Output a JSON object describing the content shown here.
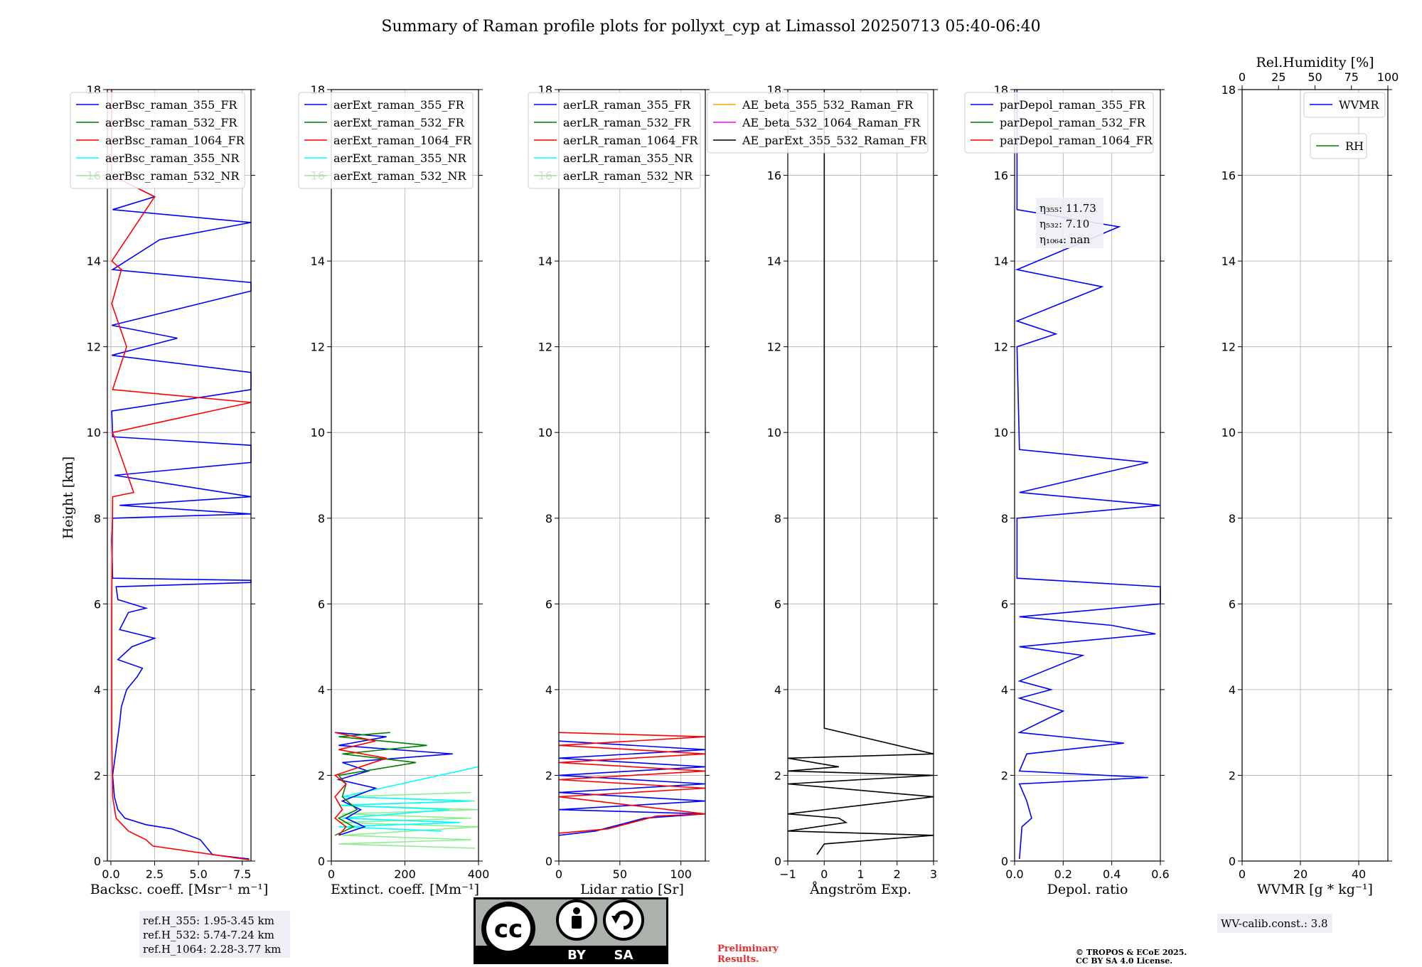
{
  "title": "Summary of Raman profile plots for pollyxt_cyp at Limassol 20250713 05:40-06:40",
  "y_axis_label": "Height [km]",
  "y_ticks": [
    "0",
    "2",
    "4",
    "6",
    "8",
    "10",
    "12",
    "14",
    "16",
    "18"
  ],
  "colors": {
    "c355": "#0000ff",
    "c532": "#008000",
    "c1064": "#ff0000",
    "c355nr": "#00ffff",
    "c532nr": "#90ee90",
    "orange": "#ffa500",
    "magenta": "#ff00ff",
    "black": "#000000"
  },
  "chart_data": [
    {
      "type": "line",
      "xlabel": "Backsc. coeff. [Msr⁻¹ m⁻¹]",
      "xlim": [
        -0.2,
        8
      ],
      "ylim": [
        0,
        18
      ],
      "x_ticks": [
        0,
        2.5,
        5,
        7.5
      ],
      "x_tick_labels": [
        "0.0",
        "2.5",
        "5.0",
        "7.5"
      ],
      "legend": [
        "aerBsc_raman_355_FR",
        "aerBsc_raman_532_FR",
        "aerBsc_raman_1064_FR",
        "aerBsc_raman_355_NR",
        "aerBsc_raman_532_NR"
      ],
      "legend_colors": [
        "c355",
        "c532",
        "c1064",
        "c355nr",
        "c532nr"
      ],
      "series": [
        {
          "name": "aerBsc_raman_355_FR",
          "color": "c355",
          "points": [
            [
              7.9,
              0.05
            ],
            [
              5.8,
              0.15
            ],
            [
              5.5,
              0.3
            ],
            [
              5.1,
              0.5
            ],
            [
              3.5,
              0.75
            ],
            [
              2.0,
              0.85
            ],
            [
              0.8,
              1.0
            ],
            [
              0.4,
              1.2
            ],
            [
              0.2,
              1.5
            ],
            [
              0.1,
              2.0
            ],
            [
              0.3,
              2.6
            ],
            [
              0.5,
              3.2
            ],
            [
              0.6,
              3.6
            ],
            [
              0.9,
              4.0
            ],
            [
              1.5,
              4.3
            ],
            [
              1.8,
              4.5
            ],
            [
              0.4,
              4.7
            ],
            [
              1.2,
              5.0
            ],
            [
              2.5,
              5.2
            ],
            [
              0.5,
              5.4
            ],
            [
              1.0,
              5.8
            ],
            [
              2.0,
              5.9
            ],
            [
              0.4,
              6.1
            ],
            [
              0.3,
              6.4
            ],
            [
              8.0,
              6.5
            ],
            [
              8.0,
              6.55
            ],
            [
              0.1,
              6.6
            ],
            [
              0.05,
              7.5
            ],
            [
              0.1,
              8.0
            ],
            [
              8.0,
              8.1
            ],
            [
              0.5,
              8.3
            ],
            [
              8.0,
              8.5
            ],
            [
              0.2,
              9.0
            ],
            [
              8.0,
              9.3
            ],
            [
              8.0,
              9.5
            ],
            [
              8.0,
              9.7
            ],
            [
              0.1,
              9.9
            ],
            [
              0.05,
              10.5
            ],
            [
              8.0,
              11.0
            ],
            [
              8.0,
              11.4
            ],
            [
              0.05,
              11.8
            ],
            [
              3.8,
              12.2
            ],
            [
              0.05,
              12.5
            ],
            [
              8.0,
              13.3
            ],
            [
              8.0,
              13.5
            ],
            [
              0.1,
              13.8
            ],
            [
              2.8,
              14.5
            ],
            [
              8.0,
              14.9
            ],
            [
              0.1,
              15.2
            ],
            [
              2.5,
              15.5
            ],
            [
              0.05,
              16.0
            ],
            [
              0.05,
              18.0
            ]
          ]
        },
        {
          "name": "aerBsc_raman_1064_FR",
          "color": "c1064",
          "points": [
            [
              7.9,
              0.03
            ],
            [
              2.4,
              0.35
            ],
            [
              2.0,
              0.5
            ],
            [
              1.0,
              0.7
            ],
            [
              0.3,
              1.0
            ],
            [
              0.1,
              1.5
            ],
            [
              0.05,
              3.0
            ],
            [
              0.05,
              6.0
            ],
            [
              0.1,
              8.5
            ],
            [
              1.3,
              8.6
            ],
            [
              0.1,
              10.0
            ],
            [
              8.0,
              10.7
            ],
            [
              0.1,
              11.0
            ],
            [
              0.9,
              12.0
            ],
            [
              0.05,
              13.0
            ],
            [
              0.6,
              13.8
            ],
            [
              0.05,
              14.0
            ],
            [
              2.5,
              15.5
            ],
            [
              0.05,
              16.0
            ],
            [
              0.05,
              18.0
            ]
          ]
        }
      ]
    },
    {
      "type": "line",
      "xlabel": "Extinct. coeff. [Mm⁻¹]",
      "xlim": [
        0,
        400
      ],
      "ylim": [
        0,
        18
      ],
      "x_ticks": [
        0,
        200,
        400
      ],
      "x_tick_labels": [
        "0",
        "200",
        "400"
      ],
      "legend": [
        "aerExt_raman_355_FR",
        "aerExt_raman_532_FR",
        "aerExt_raman_1064_FR",
        "aerExt_raman_355_NR",
        "aerExt_raman_532_NR"
      ],
      "legend_colors": [
        "c355",
        "c532",
        "c1064",
        "c355nr",
        "c532nr"
      ],
      "series": [
        {
          "name": "aerExt_raman_532_NR",
          "color": "c532nr",
          "points": [
            [
              390,
              0.3
            ],
            [
              20,
              0.4
            ],
            [
              380,
              0.5
            ],
            [
              30,
              0.6
            ],
            [
              400,
              0.8
            ],
            [
              20,
              0.9
            ],
            [
              380,
              1.0
            ],
            [
              30,
              1.1
            ],
            [
              400,
              1.2
            ],
            [
              20,
              1.3
            ],
            [
              390,
              1.4
            ],
            [
              30,
              1.5
            ],
            [
              380,
              1.6
            ]
          ]
        },
        {
          "name": "aerExt_raman_355_NR",
          "color": "c355nr",
          "points": [
            [
              300,
              0.7
            ],
            [
              20,
              0.8
            ],
            [
              350,
              0.9
            ],
            [
              30,
              1.0
            ],
            [
              320,
              1.2
            ],
            [
              20,
              1.3
            ],
            [
              380,
              1.4
            ],
            [
              30,
              1.5
            ],
            [
              400,
              2.2
            ]
          ]
        },
        {
          "name": "aerExt_raman_355_FR",
          "color": "c355",
          "points": [
            [
              20,
              0.6
            ],
            [
              90,
              0.8
            ],
            [
              40,
              1.0
            ],
            [
              80,
              1.2
            ],
            [
              30,
              1.4
            ],
            [
              120,
              1.7
            ],
            [
              20,
              1.9
            ],
            [
              100,
              2.1
            ],
            [
              30,
              2.3
            ],
            [
              330,
              2.5
            ],
            [
              20,
              2.7
            ],
            [
              150,
              2.9
            ],
            [
              10,
              3.0
            ]
          ]
        },
        {
          "name": "aerExt_raman_532_FR",
          "color": "c532",
          "points": [
            [
              10,
              0.6
            ],
            [
              60,
              0.8
            ],
            [
              20,
              1.0
            ],
            [
              70,
              1.2
            ],
            [
              30,
              1.5
            ],
            [
              40,
              1.8
            ],
            [
              20,
              2.0
            ],
            [
              230,
              2.3
            ],
            [
              30,
              2.5
            ],
            [
              260,
              2.7
            ],
            [
              20,
              2.9
            ],
            [
              160,
              3.0
            ]
          ]
        },
        {
          "name": "aerExt_raman_1064_FR",
          "color": "c1064",
          "points": [
            [
              20,
              0.6
            ],
            [
              40,
              0.8
            ],
            [
              10,
              1.0
            ],
            [
              30,
              1.2
            ],
            [
              10,
              1.5
            ],
            [
              40,
              1.8
            ],
            [
              10,
              2.0
            ],
            [
              150,
              2.4
            ],
            [
              20,
              2.6
            ],
            [
              120,
              2.8
            ],
            [
              10,
              3.0
            ]
          ]
        }
      ]
    },
    {
      "type": "line",
      "xlabel": "Lidar ratio [Sr]",
      "xlim": [
        0,
        120
      ],
      "ylim": [
        0,
        18
      ],
      "x_ticks": [
        0,
        50,
        100
      ],
      "x_tick_labels": [
        "0",
        "50",
        "100"
      ],
      "legend": [
        "aerLR_raman_355_FR",
        "aerLR_raman_532_FR",
        "aerLR_raman_1064_FR",
        "aerLR_raman_355_NR",
        "aerLR_raman_532_NR"
      ],
      "legend_colors": [
        "c355",
        "c532",
        "c1064",
        "c355nr",
        "c532nr"
      ],
      "series": [
        {
          "name": "aerLR_raman_355_FR",
          "color": "c355",
          "points": [
            [
              0,
              0.6
            ],
            [
              30,
              0.7
            ],
            [
              50,
              0.85
            ],
            [
              70,
              1.0
            ],
            [
              120,
              1.1
            ],
            [
              0,
              1.2
            ],
            [
              120,
              1.4
            ],
            [
              0,
              1.6
            ],
            [
              120,
              1.8
            ],
            [
              0,
              2.0
            ],
            [
              120,
              2.2
            ],
            [
              0,
              2.4
            ],
            [
              120,
              2.6
            ],
            [
              0,
              2.8
            ]
          ]
        },
        {
          "name": "aerLR_raman_1064_FR",
          "color": "c1064",
          "points": [
            [
              0,
              0.65
            ],
            [
              40,
              0.75
            ],
            [
              60,
              0.9
            ],
            [
              80,
              1.05
            ],
            [
              120,
              1.1
            ],
            [
              0,
              1.5
            ],
            [
              120,
              1.7
            ],
            [
              0,
              1.9
            ],
            [
              120,
              2.1
            ],
            [
              0,
              2.3
            ],
            [
              120,
              2.5
            ],
            [
              0,
              2.7
            ],
            [
              120,
              2.9
            ],
            [
              0,
              3.0
            ]
          ]
        }
      ]
    },
    {
      "type": "line",
      "xlabel": "Ångström Exp.",
      "xlim": [
        -1,
        3
      ],
      "ylim": [
        0,
        18
      ],
      "x_ticks": [
        -1,
        0,
        1,
        2,
        3
      ],
      "x_tick_labels": [
        "−1",
        "0",
        "1",
        "2",
        "3"
      ],
      "legend": [
        "AE_beta_355_532_Raman_FR",
        "AE_beta_532_1064_Raman_FR",
        "AE_parExt_355_532_Raman_FR"
      ],
      "legend_colors": [
        "orange",
        "magenta",
        "black"
      ],
      "series": [
        {
          "name": "AE_parExt_355_532_Raman_FR",
          "color": "black",
          "points": [
            [
              -0.2,
              0.15
            ],
            [
              0,
              0.4
            ],
            [
              3,
              0.6
            ],
            [
              -1,
              0.7
            ],
            [
              0.6,
              0.9
            ],
            [
              0.4,
              1.0
            ],
            [
              -1,
              1.1
            ],
            [
              3,
              1.5
            ],
            [
              -1,
              1.8
            ],
            [
              3,
              2.0
            ],
            [
              -1,
              2.1
            ],
            [
              0.4,
              2.2
            ],
            [
              -1,
              2.4
            ],
            [
              3,
              2.5
            ],
            [
              0,
              3.1
            ],
            [
              0,
              18
            ]
          ]
        }
      ]
    },
    {
      "type": "line",
      "xlabel": "Depol. ratio",
      "xlim": [
        0,
        0.6
      ],
      "ylim": [
        0,
        18
      ],
      "x_ticks": [
        0,
        0.2,
        0.4,
        0.6
      ],
      "x_tick_labels": [
        "0.0",
        "0.2",
        "0.4",
        "0.6"
      ],
      "legend": [
        "parDepol_raman_355_FR",
        "parDepol_raman_532_FR",
        "parDepol_raman_1064_FR"
      ],
      "legend_colors": [
        "c355",
        "c532",
        "c1064"
      ],
      "annotations": [
        "η₃₅₅: 11.73",
        "η₅₃₂: 7.10",
        "η₁₀₆₄: nan"
      ],
      "series": [
        {
          "name": "parDepol_raman_355_FR",
          "color": "c355",
          "points": [
            [
              0.02,
              0.05
            ],
            [
              0.03,
              0.8
            ],
            [
              0.07,
              1.0
            ],
            [
              0.05,
              1.4
            ],
            [
              0.02,
              1.8
            ],
            [
              0.55,
              1.95
            ],
            [
              0.02,
              2.1
            ],
            [
              0.05,
              2.5
            ],
            [
              0.45,
              2.75
            ],
            [
              0.02,
              3.0
            ],
            [
              0.2,
              3.5
            ],
            [
              0.02,
              3.8
            ],
            [
              0.15,
              4.0
            ],
            [
              0.02,
              4.2
            ],
            [
              0.28,
              4.8
            ],
            [
              0.02,
              5.0
            ],
            [
              0.58,
              5.3
            ],
            [
              0.4,
              5.5
            ],
            [
              0.02,
              5.7
            ],
            [
              0.6,
              6.0
            ],
            [
              0.6,
              6.2
            ],
            [
              0.6,
              6.4
            ],
            [
              0.01,
              6.6
            ],
            [
              0.01,
              8.0
            ],
            [
              0.6,
              8.3
            ],
            [
              0.02,
              8.6
            ],
            [
              0.55,
              9.3
            ],
            [
              0.02,
              9.6
            ],
            [
              0.01,
              12.0
            ],
            [
              0.17,
              12.3
            ],
            [
              0.01,
              12.6
            ],
            [
              0.36,
              13.4
            ],
            [
              0.01,
              13.8
            ],
            [
              0.43,
              14.8
            ],
            [
              0.01,
              15.2
            ],
            [
              0.01,
              18.0
            ]
          ]
        }
      ]
    },
    {
      "type": "line",
      "xlabel": "WVMR [g * kg⁻¹]",
      "xlim": [
        0,
        50
      ],
      "ylim": [
        0,
        18
      ],
      "x_ticks": [
        0,
        20,
        40
      ],
      "x_tick_labels": [
        "0",
        "20",
        "40"
      ],
      "top_axis_label": "Rel.Humidity [%]",
      "top_ticks": [
        0,
        25,
        50,
        75,
        100
      ],
      "top_tick_labels": [
        "0",
        "25",
        "50",
        "75",
        "100"
      ],
      "legend": [
        "WVMR"
      ],
      "legend_colors": [
        "c355"
      ],
      "legend2": [
        "RH"
      ],
      "legend2_colors": [
        "c532"
      ],
      "series": []
    }
  ],
  "ref_box": [
    "ref.H_355: 1.95-3.45 km",
    "ref.H_532: 5.74-7.24 km",
    "ref.H_1064: 2.28-3.77 km"
  ],
  "wv_box": "WV-calib.const.: 3.8",
  "license_badge": {
    "cc": "cc",
    "by": "BY",
    "sa": "SA"
  },
  "preliminary": [
    "Preliminary",
    "Results."
  ],
  "copyright": [
    "© TROPOS & ECoE 2025.",
    "CC BY SA 4.0 License."
  ]
}
